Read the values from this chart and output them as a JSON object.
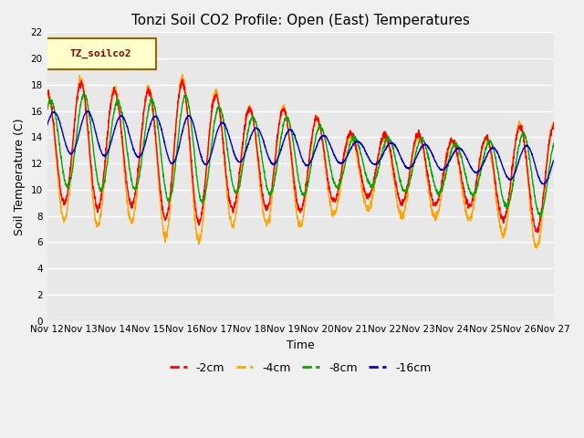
{
  "title": "Tonzi Soil CO2 Profile: Open (East) Temperatures",
  "xlabel": "Time",
  "ylabel": "Soil Temperature (C)",
  "ylim": [
    0,
    22
  ],
  "yticks": [
    0,
    2,
    4,
    6,
    8,
    10,
    12,
    14,
    16,
    18,
    20,
    22
  ],
  "x_tick_labels": [
    "Nov 12",
    "Nov 13",
    "Nov 14",
    "Nov 15",
    "Nov 16",
    "Nov 17",
    "Nov 18",
    "Nov 19",
    "Nov 20",
    "Nov 21",
    "Nov 22",
    "Nov 23",
    "Nov 24",
    "Nov 25",
    "Nov 26",
    "Nov 27"
  ],
  "legend_label": "TZ_soilco2",
  "series_labels": [
    "-2cm",
    "-4cm",
    "-8cm",
    "-16cm"
  ],
  "series_colors": [
    "#ff0000",
    "#ffa500",
    "#00aa00",
    "#0000cc"
  ],
  "background_color": "#f0f0f0",
  "plot_bg_color": "#e8e8e8",
  "title_fontsize": 11,
  "axis_fontsize": 9,
  "tick_fontsize": 7.5,
  "legend_fontsize": 9,
  "linewidth": 1.0
}
